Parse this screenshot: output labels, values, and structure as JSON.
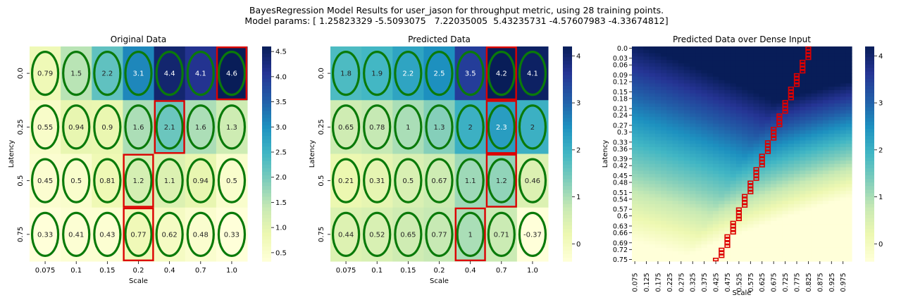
{
  "figure": {
    "title_line1": "BayesRegression Model Results for user_jason for throughput metric, using 28 training points.",
    "title_line2": "Model params: [ 1.25823329 -5.5093075   7.22035005  5.43235731 -4.57607983 -4.33674812]"
  },
  "colors": {
    "ellipse": "#0a7a0a",
    "highlight": "#dd0000",
    "colormap": [
      "#ffffd9",
      "#edf8b1",
      "#c7e9b4",
      "#7fcdbb",
      "#41b6c4",
      "#1d91c0",
      "#225ea8",
      "#253494",
      "#081d58"
    ]
  },
  "chart_data": [
    {
      "type": "heatmap",
      "title": "Original Data",
      "xlabel": "Scale",
      "ylabel": "Latency",
      "x_categories": [
        "0.075",
        "0.1",
        "0.15",
        "0.2",
        "0.4",
        "0.7",
        "1.0"
      ],
      "y_categories": [
        "0.0",
        "0.25",
        "0.5",
        "0.75"
      ],
      "values": [
        [
          0.79,
          1.5,
          2.2,
          3.1,
          4.4,
          4.1,
          4.6
        ],
        [
          0.55,
          0.94,
          0.9,
          1.6,
          2.1,
          1.6,
          1.3
        ],
        [
          0.45,
          0.5,
          0.81,
          1.2,
          1.1,
          0.94,
          0.5
        ],
        [
          0.33,
          0.41,
          0.43,
          0.77,
          0.62,
          0.48,
          0.33
        ]
      ],
      "cell_labels": [
        [
          "0.79",
          "1.5",
          "2.2",
          "3.1",
          "4.4",
          "4.1",
          "4.6"
        ],
        [
          "0.55",
          "0.94",
          "0.9",
          "1.6",
          "2.1",
          "1.6",
          "1.3"
        ],
        [
          "0.45",
          "0.5",
          "0.81",
          "1.2",
          "1.1",
          "0.94",
          "0.5"
        ],
        [
          "0.33",
          "0.41",
          "0.43",
          "0.77",
          "0.62",
          "0.48",
          "0.33"
        ]
      ],
      "highlighted_cells": [
        [
          0,
          6
        ],
        [
          1,
          4
        ],
        [
          2,
          3
        ],
        [
          3,
          3
        ]
      ],
      "colorbar_range": [
        0.33,
        4.6
      ],
      "colorbar_ticks": [
        "0.5",
        "1.0",
        "1.5",
        "2.0",
        "2.5",
        "3.0",
        "3.5",
        "4.0",
        "4.5"
      ],
      "annotations": "ellipse marker on every cell"
    },
    {
      "type": "heatmap",
      "title": "Predicted Data",
      "xlabel": "Scale",
      "ylabel": "Latency",
      "x_categories": [
        "0.075",
        "0.1",
        "0.15",
        "0.2",
        "0.4",
        "0.7",
        "1.0"
      ],
      "y_categories": [
        "0.0",
        "0.25",
        "0.5",
        "0.75"
      ],
      "values": [
        [
          1.8,
          1.9,
          2.2,
          2.5,
          3.5,
          4.2,
          4.1
        ],
        [
          0.65,
          0.78,
          1,
          1.3,
          2,
          2.3,
          2
        ],
        [
          0.21,
          0.31,
          0.5,
          0.67,
          1.1,
          1.2,
          0.46
        ],
        [
          0.44,
          0.52,
          0.65,
          0.77,
          1,
          0.71,
          -0.37
        ]
      ],
      "cell_labels": [
        [
          "1.8",
          "1.9",
          "2.2",
          "2.5",
          "3.5",
          "4.2",
          "4.1"
        ],
        [
          "0.65",
          "0.78",
          "1",
          "1.3",
          "2",
          "2.3",
          "2"
        ],
        [
          "0.21",
          "0.31",
          "0.5",
          "0.67",
          "1.1",
          "1.2",
          "0.46"
        ],
        [
          "0.44",
          "0.52",
          "0.65",
          "0.77",
          "1",
          "0.71",
          "-0.37"
        ]
      ],
      "highlighted_cells": [
        [
          0,
          5
        ],
        [
          1,
          5
        ],
        [
          2,
          5
        ],
        [
          3,
          4
        ]
      ],
      "colorbar_range": [
        -0.37,
        4.2
      ],
      "colorbar_ticks": [
        "0",
        "1",
        "2",
        "3",
        "4"
      ],
      "annotations": "ellipse marker on every cell"
    },
    {
      "type": "heatmap",
      "title": "Predicted Data over Dense Input",
      "xlabel": "Scale",
      "ylabel": "Latency",
      "x_categories": [
        "0.075",
        "0.1",
        "0.125",
        "0.15",
        "0.175",
        "0.2",
        "0.225",
        "0.25",
        "0.275",
        "0.3",
        "0.325",
        "0.35",
        "0.375",
        "0.4",
        "0.425",
        "0.45",
        "0.475",
        "0.5",
        "0.525",
        "0.55",
        "0.575",
        "0.6",
        "0.625",
        "0.65",
        "0.675",
        "0.7",
        "0.725",
        "0.75",
        "0.775",
        "0.8",
        "0.825",
        "0.85",
        "0.875",
        "0.9",
        "0.925",
        "0.95",
        "0.975",
        "1.0"
      ],
      "x_tick_labels": [
        "0.075",
        "0.125",
        "0.175",
        "0.225",
        "0.275",
        "0.325",
        "0.375",
        "0.425",
        "0.475",
        "0.525",
        "0.575",
        "0.625",
        "0.675",
        "0.725",
        "0.775",
        "0.825",
        "0.875",
        "0.925",
        "0.975"
      ],
      "y_tick_labels": [
        "0.0",
        "0.03",
        "0.06",
        "0.09",
        "0.12",
        "0.15",
        "0.18",
        "0.21",
        "0.24",
        "0.27",
        "0.3",
        "0.33",
        "0.36",
        "0.39",
        "0.42",
        "0.45",
        "0.48",
        "0.51",
        "0.54",
        "0.57",
        "0.6",
        "0.63",
        "0.66",
        "0.69",
        "0.72",
        "0.75"
      ],
      "y_range": [
        0,
        0.75
      ],
      "colorbar_range": [
        -0.37,
        4.2
      ],
      "colorbar_ticks": [
        "0",
        "1",
        "2",
        "3",
        "4"
      ],
      "max_path_scale": [
        0.825,
        0.825,
        0.825,
        0.825,
        0.8,
        0.8,
        0.8,
        0.8,
        0.775,
        0.775,
        0.775,
        0.775,
        0.75,
        0.75,
        0.75,
        0.75,
        0.725,
        0.725,
        0.725,
        0.725,
        0.7,
        0.7,
        0.7,
        0.7,
        0.675,
        0.675,
        0.675,
        0.675,
        0.65,
        0.65,
        0.65,
        0.65,
        0.625,
        0.625,
        0.625,
        0.625,
        0.6,
        0.6,
        0.6,
        0.6,
        0.575,
        0.575,
        0.575,
        0.575,
        0.55,
        0.55,
        0.55,
        0.55,
        0.525,
        0.525,
        0.525,
        0.525,
        0.5,
        0.5,
        0.5,
        0.5,
        0.475,
        0.475,
        0.475,
        0.475,
        0.45,
        0.45,
        0.45,
        0.425
      ]
    }
  ]
}
